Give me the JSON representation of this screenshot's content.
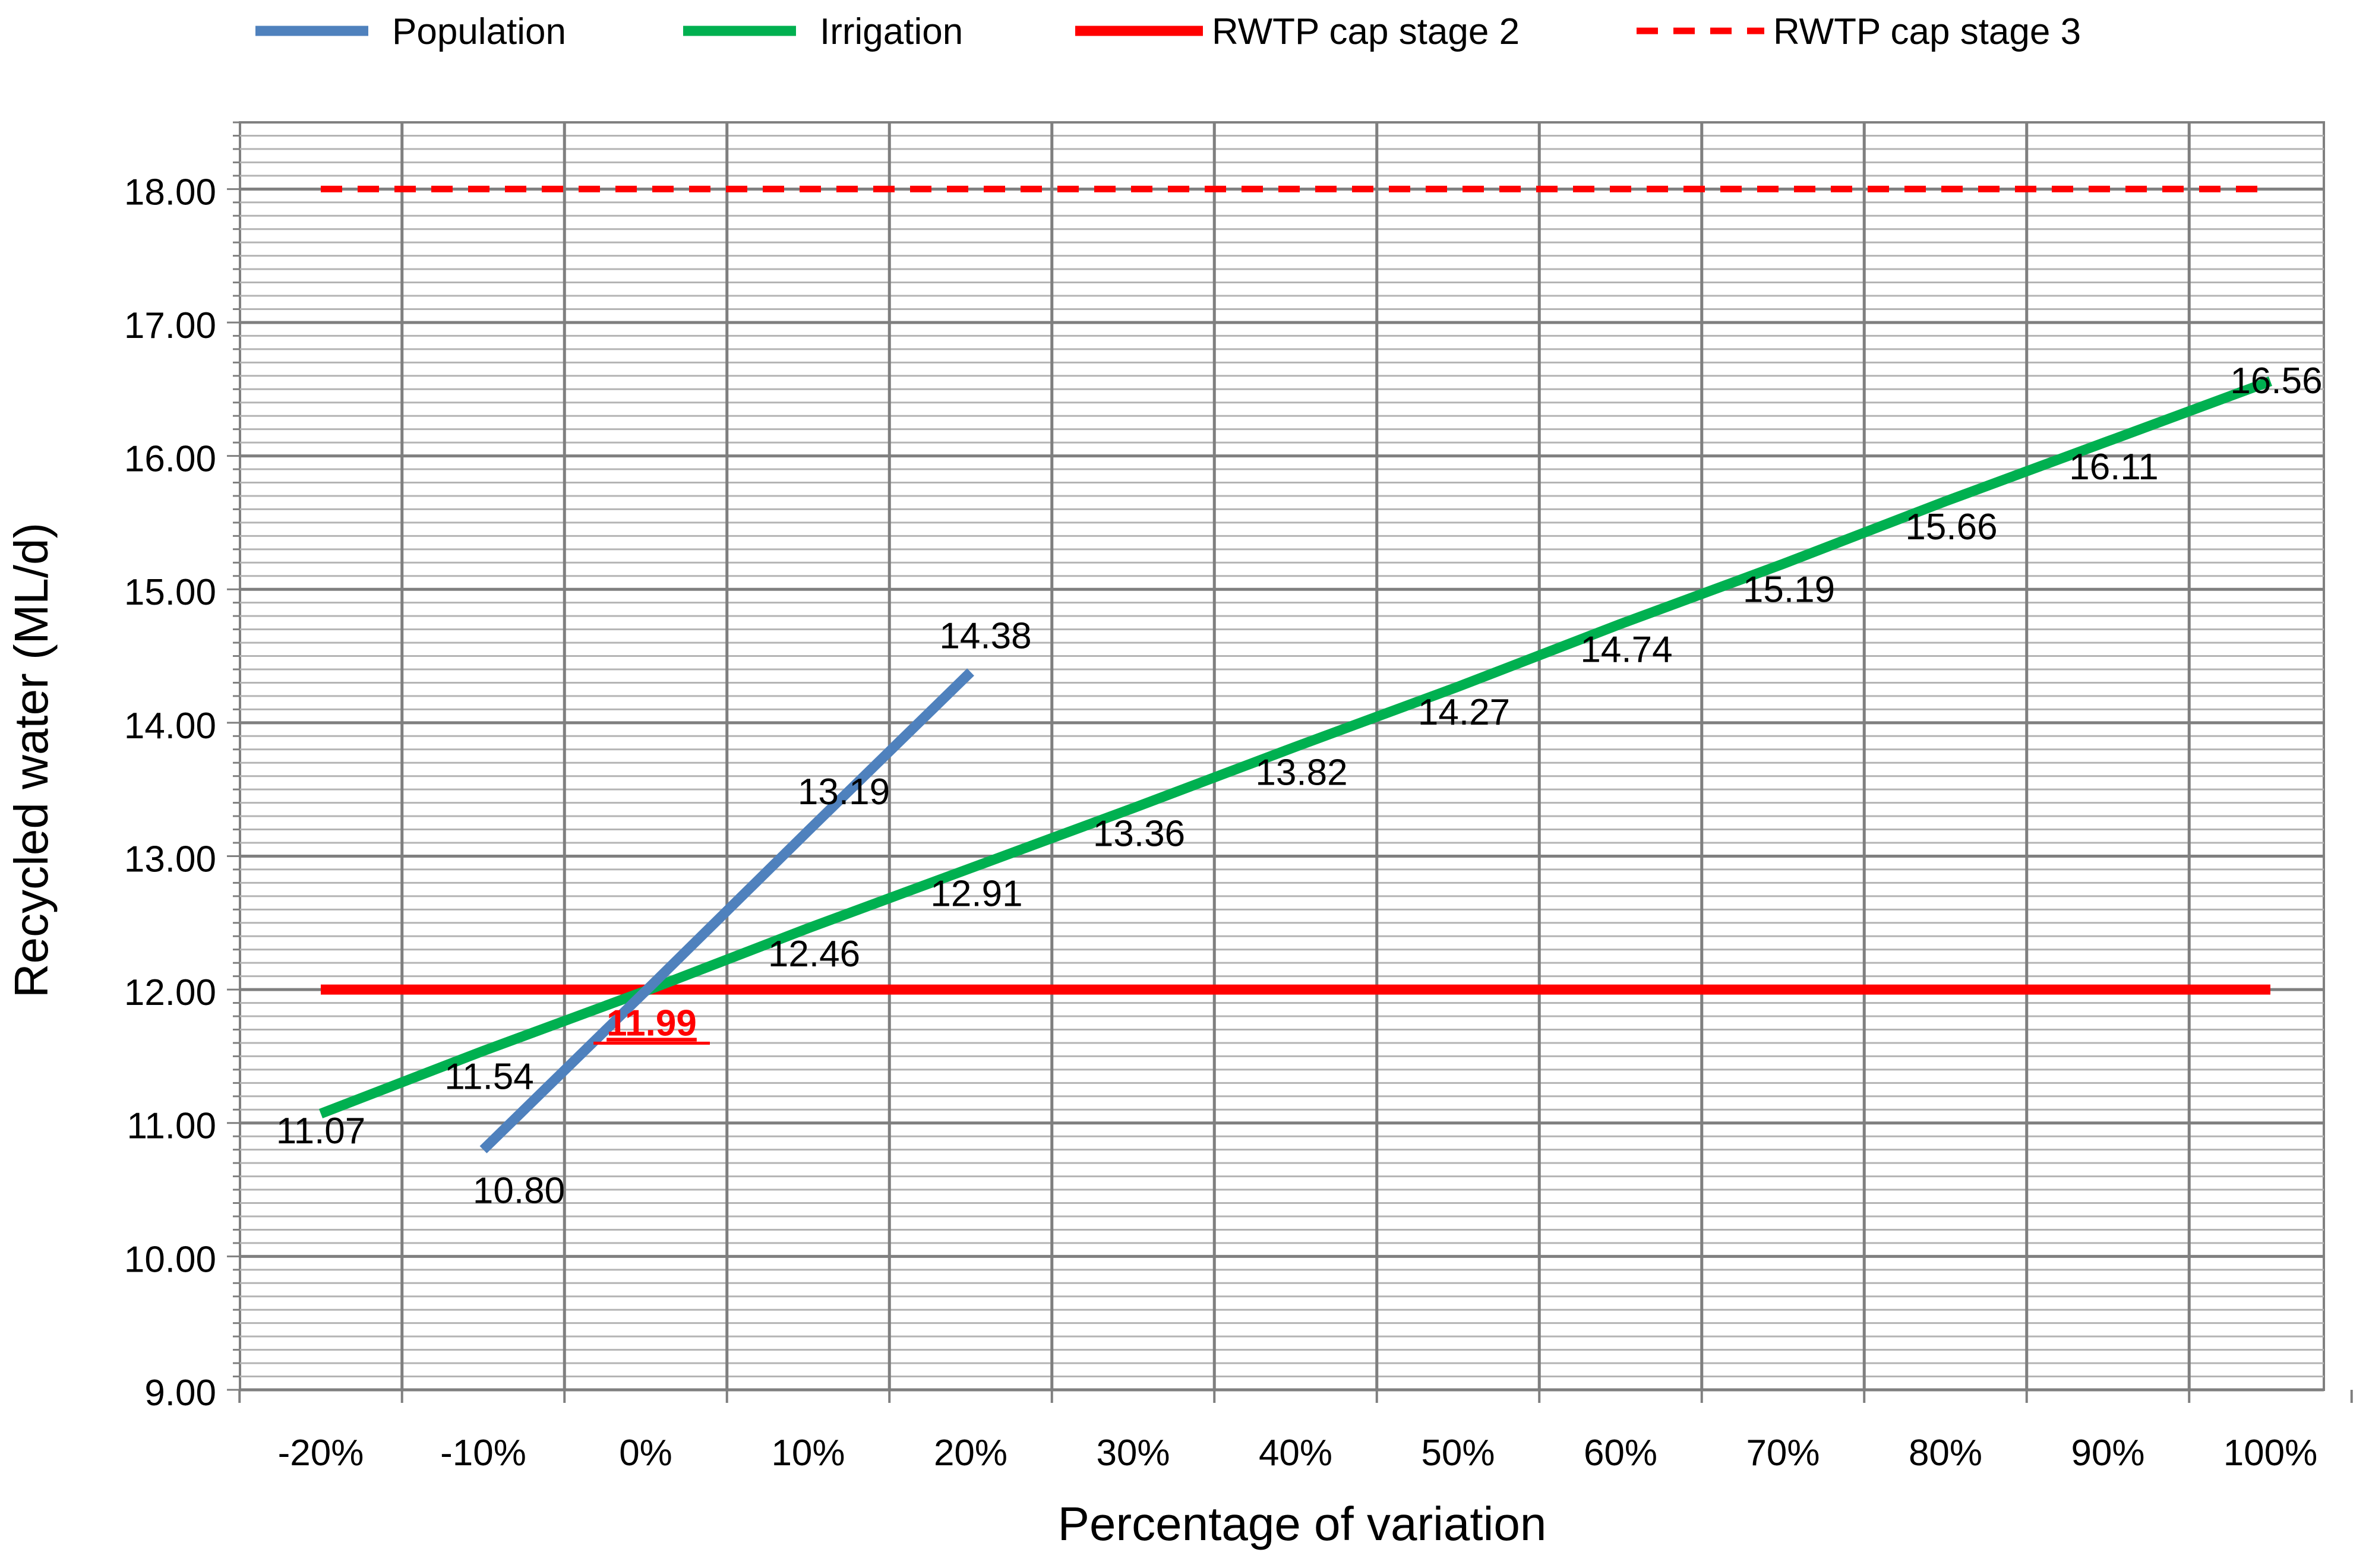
{
  "chart_data": {
    "type": "line",
    "title": "",
    "xlabel": "Percentage of variation",
    "ylabel": "Recycled water (ML/d)",
    "categories": [
      "-20%",
      "-10%",
      "0%",
      "10%",
      "20%",
      "30%",
      "40%",
      "50%",
      "60%",
      "70%",
      "80%",
      "90%",
      "100%"
    ],
    "x_values": [
      -20,
      -10,
      0,
      10,
      20,
      30,
      40,
      50,
      60,
      70,
      80,
      90,
      100
    ],
    "ylim": [
      9,
      18.5
    ],
    "y_ticks": [
      "9.00",
      "10.00",
      "11.00",
      "12.00",
      "13.00",
      "14.00",
      "15.00",
      "16.00",
      "17.00",
      "18.00"
    ],
    "y_tick_values": [
      9,
      10,
      11,
      12,
      13,
      14,
      15,
      16,
      17,
      18
    ],
    "grid": true,
    "legend_position": "top",
    "series": [
      {
        "name": "Population",
        "color": "#4f81bd",
        "style": "solid",
        "x": [
          -10,
          0,
          10,
          20
        ],
        "y": [
          10.8,
          11.99,
          13.19,
          14.38
        ],
        "labels": [
          "10.80",
          "",
          "13.19",
          "14.38"
        ]
      },
      {
        "name": "Irrigation",
        "color": "#00b050",
        "style": "solid",
        "x": [
          -20,
          -10,
          0,
          10,
          20,
          30,
          40,
          50,
          60,
          70,
          80,
          90,
          100
        ],
        "y": [
          11.07,
          11.54,
          11.99,
          12.46,
          12.91,
          13.36,
          13.82,
          14.27,
          14.74,
          15.19,
          15.66,
          16.11,
          16.56
        ],
        "labels": [
          "11.07",
          "11.54",
          "",
          "12.46",
          "12.91",
          "13.36",
          "13.82",
          "14.27",
          "14.74",
          "15.19",
          "15.66",
          "16.11",
          "16.56"
        ]
      },
      {
        "name": "RWTP cap stage 2",
        "color": "#ff0000",
        "style": "solid",
        "x": [
          -20,
          100
        ],
        "y": [
          12,
          12
        ],
        "labels": []
      },
      {
        "name": "RWTP cap stage 3",
        "color": "#ff0000",
        "style": "dashed",
        "x": [
          -20,
          100
        ],
        "y": [
          18,
          18
        ],
        "labels": []
      }
    ],
    "annotations": [
      {
        "text": "11.99",
        "x": 0,
        "y": 11.99,
        "color": "#ff0000",
        "bold": true,
        "underline": true
      }
    ]
  }
}
